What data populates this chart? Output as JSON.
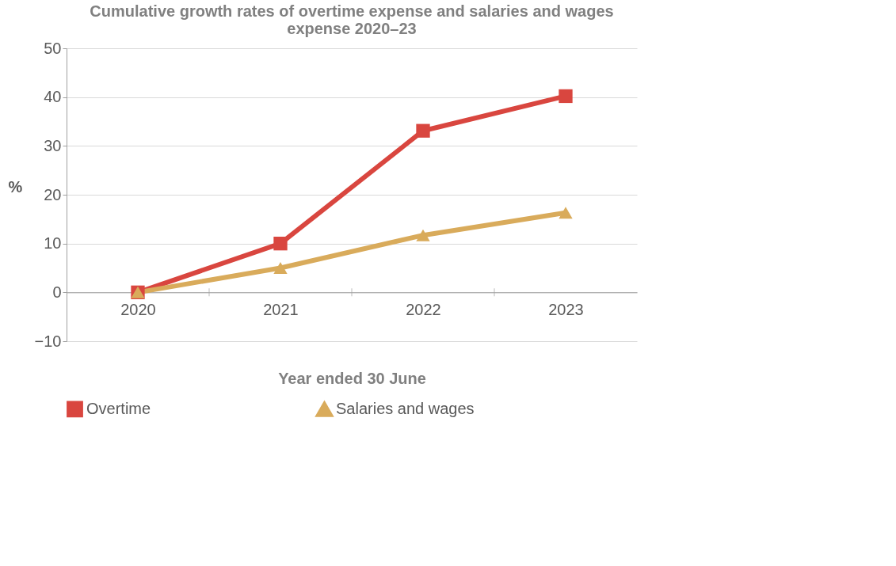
{
  "chart_data": {
    "type": "line",
    "title": [
      "Cumulative growth rates of overtime expense and salaries and wages",
      "expense 2020–23"
    ],
    "xlabel": "Year ended 30 June",
    "ylabel": "%",
    "categories": [
      "2020",
      "2021",
      "2022",
      "2023"
    ],
    "series": [
      {
        "name": "Overtime",
        "color": "#d9463f",
        "marker": "square",
        "values": [
          0,
          10.0,
          33.1,
          40.2
        ]
      },
      {
        "name": "Salaries and wages",
        "color": "#d9ab5b",
        "marker": "triangle",
        "values": [
          0,
          5.0,
          11.7,
          16.3
        ]
      }
    ],
    "ylim": [
      -10,
      50
    ],
    "yticks": [
      -10,
      0,
      10,
      20,
      30,
      40,
      50
    ],
    "grid": "y",
    "legend": "bottom",
    "line_style": "solid"
  }
}
